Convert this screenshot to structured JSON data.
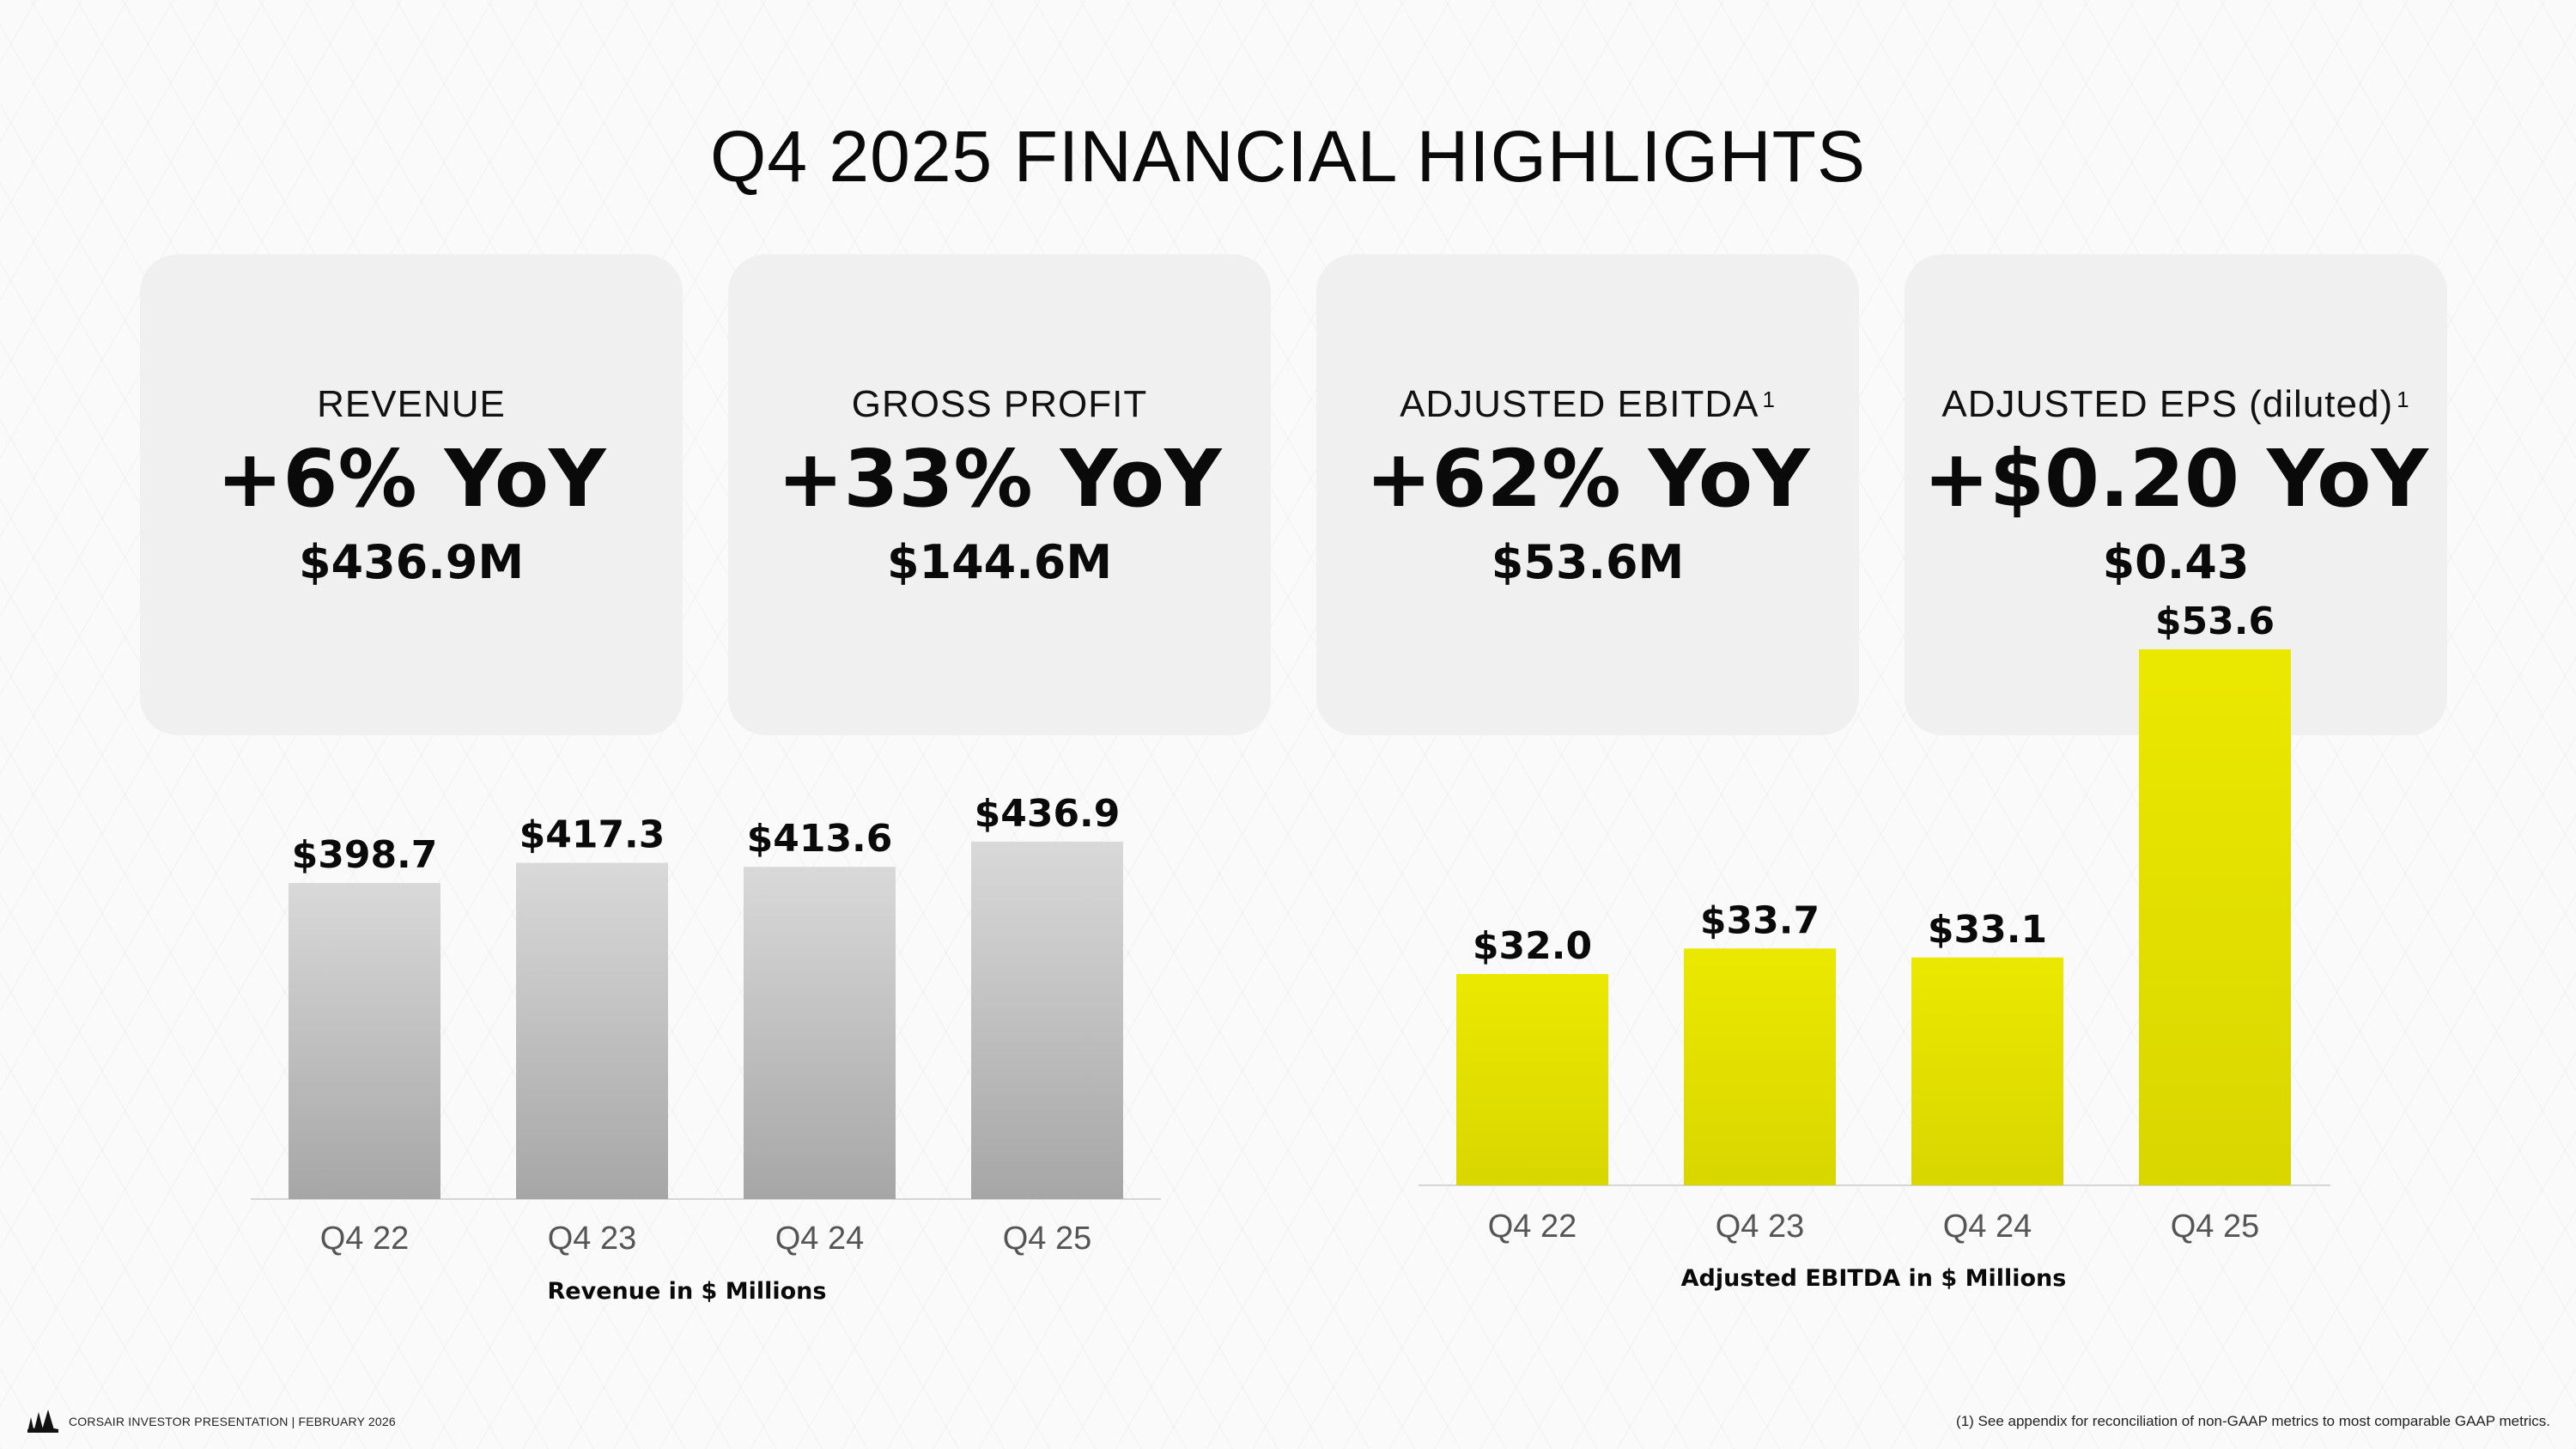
{
  "title": "Q4 2025 FINANCIAL HIGHLIGHTS",
  "cards": [
    {
      "label": "REVENUE",
      "sup": "",
      "yoy": "+6% YoY",
      "value": "$436.9M"
    },
    {
      "label": "GROSS PROFIT",
      "sup": "",
      "yoy": "+33% YoY",
      "value": "$144.6M"
    },
    {
      "label": "ADJUSTED EBITDA",
      "sup": "1",
      "yoy": "+62% YoY",
      "value": "$53.6M"
    },
    {
      "label": "ADJUSTED EPS (diluted)",
      "sup": "1",
      "yoy": "+$0.20 YoY",
      "value": "$0.43"
    }
  ],
  "colors": {
    "revenue_bar_top": "#d9d9d9",
    "revenue_bar_bottom": "#a6a6a6",
    "ebitda_bar_top": "#ebe800",
    "ebitda_bar_bottom": "#d9d600",
    "card_bg": "#f0f0f0"
  },
  "chart_data": [
    {
      "type": "bar",
      "title": "",
      "categories": [
        "Q4 22",
        "Q4 23",
        "Q4 24",
        "Q4 25"
      ],
      "values": [
        398.7,
        417.3,
        413.6,
        436.9
      ],
      "value_labels": [
        "$398.7",
        "$417.3",
        "$413.6",
        "$436.9"
      ],
      "xlabel": "Revenue in $ Millions",
      "ylabel": "",
      "ylim": [
        0,
        436.9
      ],
      "grid": false,
      "legend": "none"
    },
    {
      "type": "bar",
      "title": "",
      "categories": [
        "Q4 22",
        "Q4 23",
        "Q4 24",
        "Q4 25"
      ],
      "values": [
        32.0,
        33.7,
        33.1,
        53.6
      ],
      "value_labels": [
        "$32.0",
        "$33.7",
        "$33.1",
        "$53.6"
      ],
      "xlabel": "Adjusted EBITDA in $ Millions",
      "ylabel": "",
      "ylim": [
        0,
        53.6
      ],
      "grid": false,
      "legend": "none"
    }
  ],
  "footer": {
    "left": "CORSAIR INVESTOR PRESENTATION | FEBRUARY 2026",
    "footnote": "(1) See appendix for reconciliation of non-GAAP metrics to most comparable GAAP metrics."
  }
}
